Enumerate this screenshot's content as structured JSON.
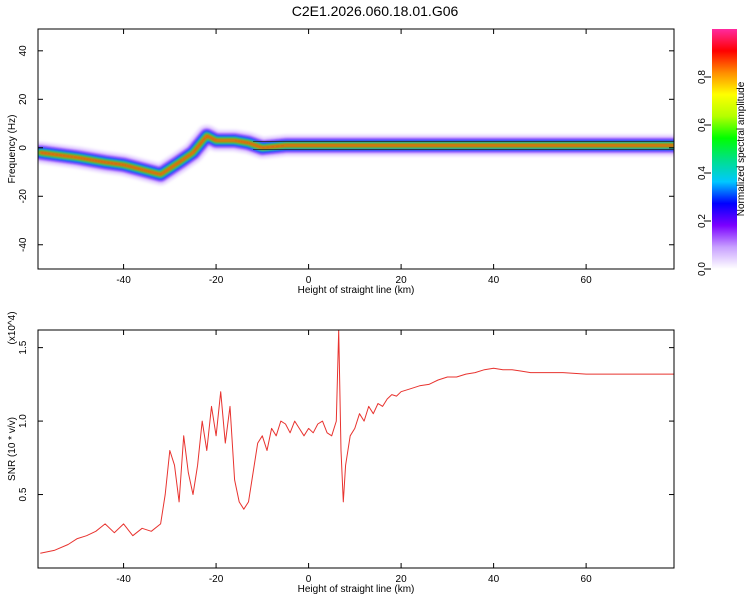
{
  "figure": {
    "title": "C2E1.2026.060.18.01.G06"
  },
  "colors": {
    "snr_line": "#e8332f",
    "axis": "#000000",
    "ridge_core": "#e0101a",
    "ridge_edge": "#22c01a"
  },
  "chart_data": [
    {
      "type": "heatmap",
      "title": "C2E1.2026.060.18.01.G06",
      "xlabel": "Height of straight line (km)",
      "ylabel": "Frequency (Hz)",
      "xlim": [
        -58.5,
        79
      ],
      "ylim": [
        -50,
        49
      ],
      "xticks": [
        -40,
        -20,
        0,
        20,
        40,
        60
      ],
      "yticks": [
        -40,
        -20,
        0,
        20,
        40
      ],
      "xtick_labels": [
        "-40",
        "-20",
        "0",
        "20",
        "40",
        "60"
      ],
      "ytick_labels": [
        "-40",
        "-20",
        "0",
        "20",
        "40"
      ],
      "colorbar": {
        "label": "Normalized spectral amplitude",
        "range": [
          0,
          1
        ],
        "ticks": [
          0.0,
          0.2,
          0.4,
          0.6,
          0.8
        ],
        "tick_labels": [
          "0.0",
          "0.2",
          "0.4",
          "0.6",
          "0.8"
        ],
        "colormap": [
          "#ffffff",
          "#c8a0ff",
          "#7b00ff",
          "#0000ff",
          "#00c8ff",
          "#00e08a",
          "#00ff00",
          "#b4ff00",
          "#ffff00",
          "#ff8c00",
          "#ff0000",
          "#ff2aa0"
        ]
      },
      "ridge": {
        "x": [
          -58,
          -50,
          -44,
          -40,
          -36,
          -32,
          -28,
          -25,
          -22,
          -20,
          -18,
          -16,
          -13,
          -10,
          -5,
          0,
          10,
          20,
          30,
          40,
          50,
          60,
          70,
          79
        ],
        "y": [
          -2,
          -4,
          -6,
          -7,
          -9,
          -11,
          -6,
          -2,
          5,
          3,
          3,
          3,
          2,
          0,
          1,
          1,
          1,
          1,
          1,
          1,
          1,
          1,
          1,
          1
        ]
      },
      "grid": false
    },
    {
      "type": "line",
      "xlabel": "Height of straight line (km)",
      "ylabel": "SNR (10 * v/v)",
      "y_multiplier": "(x10^4)",
      "xlim": [
        -58.5,
        79
      ],
      "ylim": [
        0,
        1.62
      ],
      "xticks": [
        -40,
        -20,
        0,
        20,
        40,
        60
      ],
      "yticks": [
        0.5,
        1.0,
        1.5
      ],
      "xtick_labels": [
        "-40",
        "-20",
        "0",
        "20",
        "40",
        "60"
      ],
      "ytick_labels": [
        "0.5",
        "1.0",
        "1.5"
      ],
      "series": [
        {
          "color": "#e8332f",
          "x": [
            -58,
            -55,
            -52,
            -50,
            -48,
            -46,
            -44,
            -42,
            -40,
            -38,
            -36,
            -34,
            -32,
            -31,
            -30,
            -29,
            -28,
            -27,
            -26,
            -25,
            -24,
            -23,
            -22,
            -21,
            -20,
            -19,
            -18,
            -17,
            -16,
            -15,
            -14,
            -13,
            -12,
            -11,
            -10,
            -9,
            -8,
            -7,
            -6,
            -5,
            -4,
            -3,
            -2,
            -1,
            0,
            1,
            2,
            3,
            4,
            5,
            6,
            6.5,
            7,
            7.5,
            8,
            9,
            10,
            11,
            12,
            13,
            14,
            15,
            16,
            17,
            18,
            19,
            20,
            22,
            24,
            26,
            28,
            30,
            32,
            34,
            36,
            38,
            40,
            42,
            44,
            46,
            48,
            50,
            55,
            60,
            65,
            70,
            75,
            79
          ],
          "y": [
            0.1,
            0.12,
            0.16,
            0.2,
            0.22,
            0.25,
            0.3,
            0.24,
            0.3,
            0.22,
            0.27,
            0.25,
            0.3,
            0.5,
            0.8,
            0.7,
            0.45,
            0.9,
            0.65,
            0.5,
            0.7,
            1.0,
            0.8,
            1.1,
            0.9,
            1.2,
            0.85,
            1.1,
            0.6,
            0.45,
            0.4,
            0.45,
            0.65,
            0.85,
            0.9,
            0.8,
            0.95,
            0.9,
            1.0,
            0.98,
            0.92,
            1.0,
            0.95,
            0.9,
            0.95,
            0.92,
            0.98,
            1.0,
            0.92,
            0.9,
            1.0,
            1.62,
            0.8,
            0.45,
            0.7,
            0.9,
            0.95,
            1.05,
            1.0,
            1.1,
            1.05,
            1.12,
            1.1,
            1.15,
            1.18,
            1.17,
            1.2,
            1.22,
            1.24,
            1.25,
            1.28,
            1.3,
            1.3,
            1.32,
            1.33,
            1.35,
            1.36,
            1.35,
            1.35,
            1.34,
            1.33,
            1.33,
            1.33,
            1.32,
            1.32,
            1.32,
            1.32,
            1.32
          ]
        }
      ],
      "grid": false
    }
  ]
}
